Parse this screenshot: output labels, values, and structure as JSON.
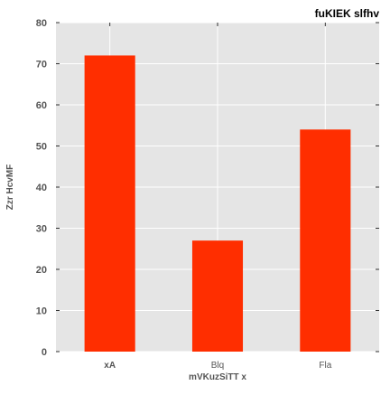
{
  "chart_data": {
    "type": "bar",
    "title": "fuKIEK slfhv",
    "xlabel": "mVKuzSiTT x",
    "ylabel": "Zzr HcvMF",
    "categories": [
      "xA",
      "Blq",
      "Fla"
    ],
    "values": [
      72,
      27,
      54
    ],
    "ylim": [
      0,
      80
    ],
    "yticks": [
      "0",
      "10",
      "20",
      "30",
      "40",
      "50",
      "60",
      "70",
      "80"
    ],
    "grid": true,
    "colors": {
      "bar": "#ff2e00",
      "background": "#e5e5e5",
      "grid": "#ffffff",
      "text": "#555555",
      "title": "#000000"
    }
  }
}
